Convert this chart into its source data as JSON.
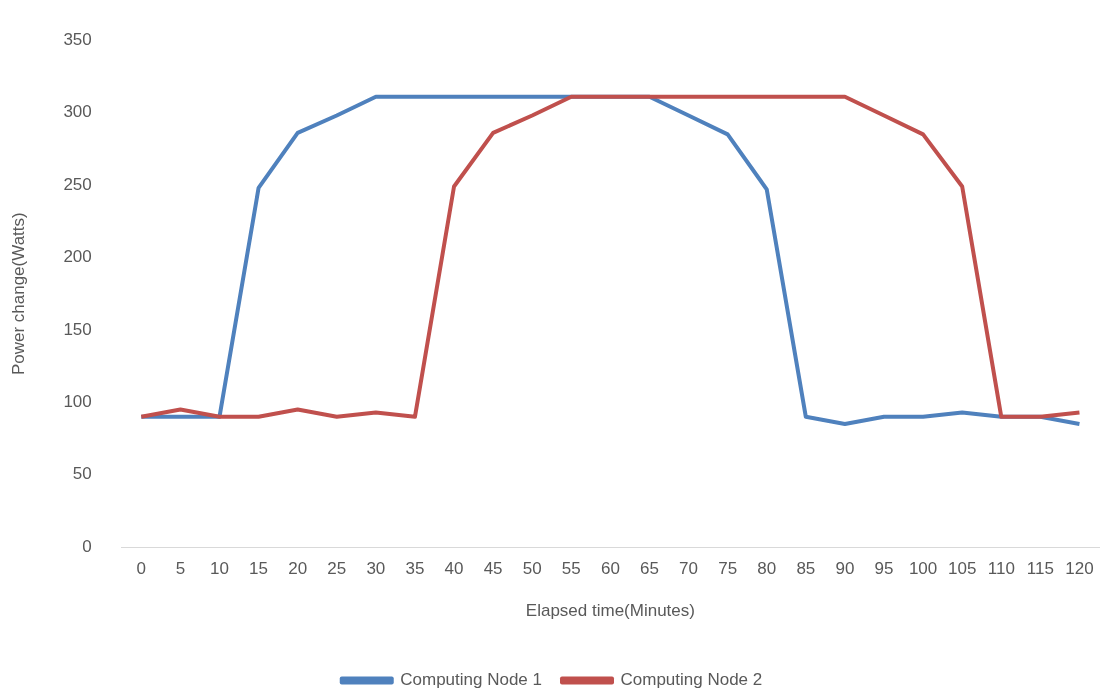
{
  "chart_data": {
    "type": "line",
    "xlabel": "Elapsed time(Minutes)",
    "ylabel": "Power change(Watts)",
    "categories": [
      "0",
      "5",
      "10",
      "15",
      "20",
      "25",
      "30",
      "35",
      "40",
      "45",
      "50",
      "55",
      "60",
      "65",
      "70",
      "75",
      "80",
      "85",
      "90",
      "95",
      "100",
      "105",
      "110",
      "115",
      "120"
    ],
    "series": [
      {
        "name": "Computing Node 1",
        "color": "#4f81bd",
        "values": [
          90,
          90,
          90,
          248,
          286,
          298,
          311,
          311,
          311,
          311,
          311,
          311,
          311,
          311,
          298,
          285,
          247,
          90,
          85,
          90,
          90,
          93,
          90,
          90,
          85
        ]
      },
      {
        "name": "Computing Node 2",
        "color": "#c0504d",
        "values": [
          90,
          95,
          90,
          90,
          95,
          90,
          93,
          90,
          249,
          286,
          298,
          311,
          311,
          311,
          311,
          311,
          311,
          311,
          311,
          298,
          285,
          249,
          90,
          90,
          93
        ]
      }
    ],
    "ylim": [
      0,
      350
    ],
    "yticks": [
      0,
      50,
      100,
      150,
      200,
      250,
      300,
      350
    ],
    "grid": false,
    "legend": "bottom",
    "marker": "none",
    "line_style": "solid"
  }
}
